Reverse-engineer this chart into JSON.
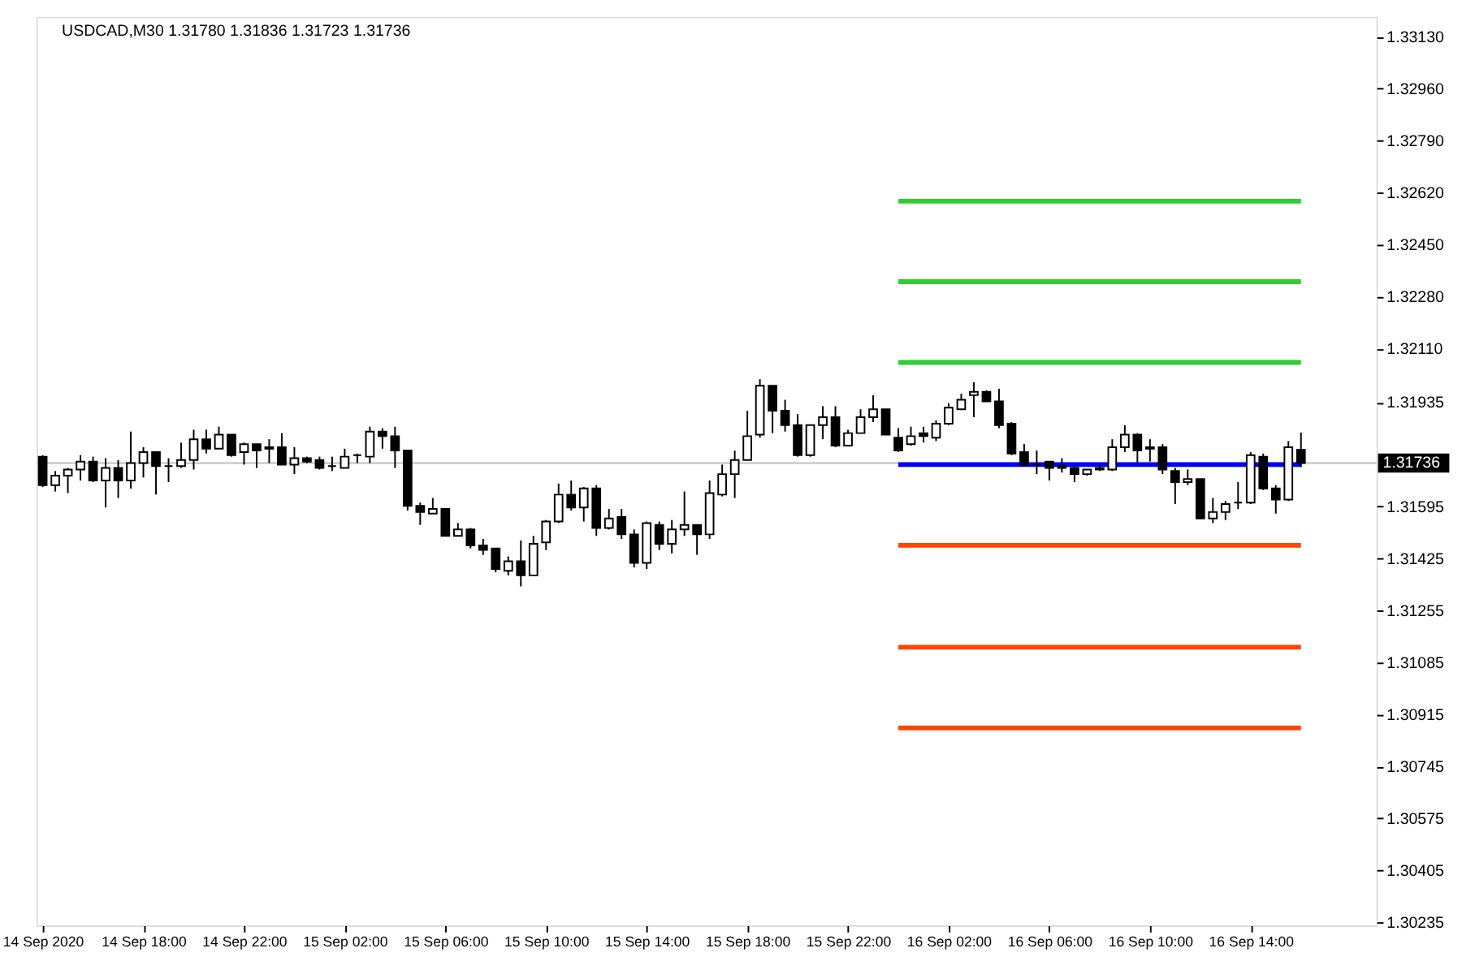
{
  "chart_data": {
    "type": "candlestick",
    "title": "USDCAD,M30 1.31780 1.31836 1.31723 1.31736",
    "x": [
      "2020-09-14T14:00",
      "2020-09-14T14:30",
      "2020-09-14T15:00",
      "2020-09-14T15:30",
      "2020-09-14T16:00",
      "2020-09-14T16:30",
      "2020-09-14T17:00",
      "2020-09-14T17:30",
      "2020-09-14T18:00",
      "2020-09-14T18:30",
      "2020-09-14T19:00",
      "2020-09-14T19:30",
      "2020-09-14T20:00",
      "2020-09-14T20:30",
      "2020-09-14T21:00",
      "2020-09-14T21:30",
      "2020-09-14T22:00",
      "2020-09-14T22:30",
      "2020-09-14T23:00",
      "2020-09-14T23:30",
      "2020-09-15T00:00",
      "2020-09-15T00:30",
      "2020-09-15T01:00",
      "2020-09-15T01:30",
      "2020-09-15T02:00",
      "2020-09-15T02:30",
      "2020-09-15T03:00",
      "2020-09-15T03:30",
      "2020-09-15T04:00",
      "2020-09-15T04:30",
      "2020-09-15T05:00",
      "2020-09-15T05:30",
      "2020-09-15T06:00",
      "2020-09-15T06:30",
      "2020-09-15T07:00",
      "2020-09-15T07:30",
      "2020-09-15T08:00",
      "2020-09-15T08:30",
      "2020-09-15T09:00",
      "2020-09-15T09:30",
      "2020-09-15T10:00",
      "2020-09-15T10:30",
      "2020-09-15T11:00",
      "2020-09-15T11:30",
      "2020-09-15T12:00",
      "2020-09-15T12:30",
      "2020-09-15T13:00",
      "2020-09-15T13:30",
      "2020-09-15T14:00",
      "2020-09-15T14:30",
      "2020-09-15T15:00",
      "2020-09-15T15:30",
      "2020-09-15T16:00",
      "2020-09-15T16:30",
      "2020-09-15T17:00",
      "2020-09-15T17:30",
      "2020-09-15T18:00",
      "2020-09-15T18:30",
      "2020-09-15T19:00",
      "2020-09-15T19:30",
      "2020-09-15T20:00",
      "2020-09-15T20:30",
      "2020-09-15T21:00",
      "2020-09-15T21:30",
      "2020-09-15T22:00",
      "2020-09-15T22:30",
      "2020-09-15T23:00",
      "2020-09-15T23:30",
      "2020-09-16T00:00",
      "2020-09-16T00:30",
      "2020-09-16T01:00",
      "2020-09-16T01:30",
      "2020-09-16T02:00",
      "2020-09-16T02:30",
      "2020-09-16T03:00",
      "2020-09-16T03:30",
      "2020-09-16T04:00",
      "2020-09-16T04:30",
      "2020-09-16T05:00",
      "2020-09-16T05:30",
      "2020-09-16T06:00",
      "2020-09-16T06:30",
      "2020-09-16T07:00",
      "2020-09-16T07:30",
      "2020-09-16T08:00",
      "2020-09-16T08:30",
      "2020-09-16T09:00",
      "2020-09-16T09:30",
      "2020-09-16T10:00",
      "2020-09-16T10:30",
      "2020-09-16T11:00",
      "2020-09-16T11:30",
      "2020-09-16T12:00",
      "2020-09-16T12:30",
      "2020-09-16T13:00",
      "2020-09-16T13:30",
      "2020-09-16T14:00",
      "2020-09-16T14:30",
      "2020-09-16T15:00",
      "2020-09-16T15:30",
      "2020-09-16T16:00"
    ],
    "ohlc": [
      [
        1.31757,
        1.31762,
        1.31658,
        1.31664
      ],
      [
        1.31664,
        1.3171,
        1.31643,
        1.31695
      ],
      [
        1.31695,
        1.3172,
        1.31638,
        1.31715
      ],
      [
        1.31715,
        1.31762,
        1.31679,
        1.31741
      ],
      [
        1.31741,
        1.31757,
        1.31674,
        1.31679
      ],
      [
        1.31679,
        1.31752,
        1.31591,
        1.3172
      ],
      [
        1.3172,
        1.31746,
        1.31622,
        1.31679
      ],
      [
        1.31679,
        1.31839,
        1.31653,
        1.31736
      ],
      [
        1.31736,
        1.31788,
        1.31689,
        1.31772
      ],
      [
        1.31772,
        1.31772,
        1.31633,
        1.31726
      ],
      [
        1.31726,
        1.31752,
        1.31674,
        1.31726
      ],
      [
        1.31726,
        1.31803,
        1.3172,
        1.31746
      ],
      [
        1.31746,
        1.31845,
        1.31715,
        1.31814
      ],
      [
        1.31814,
        1.31845,
        1.31767,
        1.31783
      ],
      [
        1.31783,
        1.31855,
        1.31783,
        1.31829
      ],
      [
        1.31829,
        1.31829,
        1.31757,
        1.31762
      ],
      [
        1.31772,
        1.31803,
        1.31731,
        1.31798
      ],
      [
        1.31798,
        1.31798,
        1.3172,
        1.31777
      ],
      [
        1.31788,
        1.31814,
        1.31736,
        1.31783
      ],
      [
        1.31788,
        1.31834,
        1.31731,
        1.31731
      ],
      [
        1.31731,
        1.31788,
        1.317,
        1.31752
      ],
      [
        1.31752,
        1.31757,
        1.31736,
        1.31741
      ],
      [
        1.31746,
        1.31757,
        1.31715,
        1.3172
      ],
      [
        1.31726,
        1.31757,
        1.3171,
        1.31726
      ],
      [
        1.3172,
        1.31783,
        1.3172,
        1.31757
      ],
      [
        1.31762,
        1.31767,
        1.31736,
        1.31762
      ],
      [
        1.31757,
        1.31855,
        1.31736,
        1.31839
      ],
      [
        1.31839,
        1.3185,
        1.31783,
        1.31824
      ],
      [
        1.31824,
        1.31855,
        1.3172,
        1.31777
      ],
      [
        1.31777,
        1.31777,
        1.31581,
        1.31596
      ],
      [
        1.31596,
        1.31607,
        1.31534,
        1.31576
      ],
      [
        1.31571,
        1.31622,
        1.31571,
        1.31586
      ],
      [
        1.31586,
        1.31586,
        1.31498,
        1.31498
      ],
      [
        1.31498,
        1.3154,
        1.31498,
        1.31519
      ],
      [
        1.31519,
        1.31524,
        1.31457,
        1.31467
      ],
      [
        1.31467,
        1.31488,
        1.31436,
        1.31452
      ],
      [
        1.31457,
        1.31457,
        1.31379,
        1.3139
      ],
      [
        1.31384,
        1.31431,
        1.31369,
        1.31415
      ],
      [
        1.31415,
        1.31483,
        1.31333,
        1.31369
      ],
      [
        1.31369,
        1.31498,
        1.31369,
        1.31472
      ],
      [
        1.31477,
        1.3155,
        1.31452,
        1.31545
      ],
      [
        1.31545,
        1.31669,
        1.3154,
        1.31633
      ],
      [
        1.31633,
        1.31679,
        1.31581,
        1.31591
      ],
      [
        1.31591,
        1.31658,
        1.31545,
        1.31653
      ],
      [
        1.31653,
        1.31664,
        1.31498,
        1.31524
      ],
      [
        1.31524,
        1.31586,
        1.31519,
        1.31555
      ],
      [
        1.3156,
        1.31586,
        1.31488,
        1.31503
      ],
      [
        1.31503,
        1.31519,
        1.31395,
        1.3141
      ],
      [
        1.3141,
        1.31545,
        1.3139,
        1.3154
      ],
      [
        1.31534,
        1.31545,
        1.31452,
        1.31472
      ],
      [
        1.31472,
        1.3155,
        1.31441,
        1.31519
      ],
      [
        1.31519,
        1.31643,
        1.31498,
        1.31534
      ],
      [
        1.31534,
        1.31534,
        1.31436,
        1.31503
      ],
      [
        1.31503,
        1.31679,
        1.31488,
        1.31638
      ],
      [
        1.31633,
        1.31731,
        1.31627,
        1.317
      ],
      [
        1.317,
        1.31777,
        1.31622,
        1.31746
      ],
      [
        1.31746,
        1.31907,
        1.31746,
        1.31824
      ],
      [
        1.31829,
        1.3201,
        1.31819,
        1.31989
      ],
      [
        1.31989,
        1.31989,
        1.31834,
        1.31907
      ],
      [
        1.31907,
        1.31943,
        1.31839,
        1.3186
      ],
      [
        1.3186,
        1.31896,
        1.31757,
        1.31762
      ],
      [
        1.31762,
        1.3186,
        1.31757,
        1.3186
      ],
      [
        1.3186,
        1.31922,
        1.31814,
        1.31886
      ],
      [
        1.31886,
        1.31922,
        1.31788,
        1.31793
      ],
      [
        1.31793,
        1.31845,
        1.31793,
        1.31834
      ],
      [
        1.31834,
        1.31912,
        1.31834,
        1.31886
      ],
      [
        1.31886,
        1.31958,
        1.3187,
        1.31912
      ],
      [
        1.31912,
        1.31912,
        1.31829,
        1.31829
      ],
      [
        1.31819,
        1.3185,
        1.31772,
        1.31777
      ],
      [
        1.31798,
        1.31855,
        1.31793,
        1.31824
      ],
      [
        1.31834,
        1.31855,
        1.31803,
        1.31824
      ],
      [
        1.31819,
        1.31876,
        1.31808,
        1.31865
      ],
      [
        1.31865,
        1.31932,
        1.3186,
        1.31917
      ],
      [
        1.31912,
        1.31963,
        1.31912,
        1.31943
      ],
      [
        1.31958,
        1.32,
        1.31886,
        1.31969
      ],
      [
        1.31969,
        1.31974,
        1.31938,
        1.31938
      ],
      [
        1.31938,
        1.31979,
        1.3185,
        1.3186
      ],
      [
        1.31865,
        1.3187,
        1.31762,
        1.31767
      ],
      [
        1.31772,
        1.31798,
        1.31726,
        1.31731
      ],
      [
        1.31731,
        1.31777,
        1.317,
        1.31731
      ],
      [
        1.31741,
        1.31741,
        1.31679,
        1.3172
      ],
      [
        1.31726,
        1.31752,
        1.31705,
        1.3172
      ],
      [
        1.3172,
        1.31726,
        1.31674,
        1.317
      ],
      [
        1.317,
        1.31715,
        1.31695,
        1.31715
      ],
      [
        1.3172,
        1.31731,
        1.3171,
        1.31715
      ],
      [
        1.31715,
        1.31814,
        1.3171,
        1.31788
      ],
      [
        1.31788,
        1.3186,
        1.31772,
        1.31829
      ],
      [
        1.31829,
        1.31834,
        1.31736,
        1.31777
      ],
      [
        1.31788,
        1.31814,
        1.31741,
        1.31783
      ],
      [
        1.31788,
        1.31798,
        1.317,
        1.31715
      ],
      [
        1.3171,
        1.3172,
        1.31602,
        1.31674
      ],
      [
        1.31674,
        1.31715,
        1.31664,
        1.31684
      ],
      [
        1.31684,
        1.31684,
        1.31555,
        1.31555
      ],
      [
        1.31555,
        1.31622,
        1.3154,
        1.31576
      ],
      [
        1.31576,
        1.31612,
        1.3155,
        1.31602
      ],
      [
        1.31607,
        1.31674,
        1.31586,
        1.31607
      ],
      [
        1.31607,
        1.31772,
        1.31602,
        1.31762
      ],
      [
        1.31757,
        1.31767,
        1.31648,
        1.31653
      ],
      [
        1.31653,
        1.31664,
        1.31571,
        1.31617
      ],
      [
        1.31617,
        1.31808,
        1.31612,
        1.31788
      ],
      [
        1.3178,
        1.31836,
        1.31723,
        1.31736
      ]
    ],
    "series": [
      {
        "type": "line",
        "color": "#32cd32",
        "x": [
          "2020-09-16T00:00",
          "2020-09-16T16:00"
        ],
        "values": [
          1.32592,
          1.32592
        ]
      },
      {
        "type": "line",
        "color": "#32cd32",
        "x": [
          "2020-09-16T00:00",
          "2020-09-16T16:00"
        ],
        "values": [
          1.32329,
          1.32329
        ]
      },
      {
        "type": "line",
        "color": "#32cd32",
        "x": [
          "2020-09-16T00:00",
          "2020-09-16T16:00"
        ],
        "values": [
          1.32065,
          1.32065
        ]
      },
      {
        "type": "line",
        "color": "#0000ff",
        "x": [
          "2020-09-16T00:00",
          "2020-09-16T16:00"
        ],
        "values": [
          1.31731,
          1.31731
        ]
      },
      {
        "type": "line",
        "color": "#ff4500",
        "x": [
          "2020-09-16T00:00",
          "2020-09-16T16:00"
        ],
        "values": [
          1.31467,
          1.31467
        ]
      },
      {
        "type": "line",
        "color": "#ff4500",
        "x": [
          "2020-09-16T00:00",
          "2020-09-16T16:00"
        ],
        "values": [
          1.31134,
          1.31134
        ]
      },
      {
        "type": "line",
        "color": "#ff4500",
        "x": [
          "2020-09-16T00:00",
          "2020-09-16T16:00"
        ],
        "values": [
          1.3087,
          1.3087
        ]
      }
    ],
    "ref_lines": [
      {
        "axis": "y",
        "value": 1.31736,
        "label": "1.31736",
        "color": "#c0c0c0"
      }
    ],
    "xlim": [
      "2020-09-14T13:45",
      "2020-09-16T19:00"
    ],
    "xticks": [
      {
        "value": "2020-09-14T14:00",
        "label": "14 Sep 2020"
      },
      {
        "value": "2020-09-14T18:00",
        "label": "14 Sep 18:00"
      },
      {
        "value": "2020-09-14T22:00",
        "label": "14 Sep 22:00"
      },
      {
        "value": "2020-09-15T02:00",
        "label": "15 Sep 02:00"
      },
      {
        "value": "2020-09-15T06:00",
        "label": "15 Sep 06:00"
      },
      {
        "value": "2020-09-15T10:00",
        "label": "15 Sep 10:00"
      },
      {
        "value": "2020-09-15T14:00",
        "label": "15 Sep 14:00"
      },
      {
        "value": "2020-09-15T18:00",
        "label": "15 Sep 18:00"
      },
      {
        "value": "2020-09-15T22:00",
        "label": "15 Sep 22:00"
      },
      {
        "value": "2020-09-16T02:00",
        "label": "16 Sep 02:00"
      },
      {
        "value": "2020-09-16T06:00",
        "label": "16 Sep 06:00"
      },
      {
        "value": "2020-09-16T10:00",
        "label": "16 Sep 10:00"
      },
      {
        "value": "2020-09-16T14:00",
        "label": "16 Sep 14:00"
      }
    ],
    "ylim": [
      1.30225,
      1.33195
    ],
    "yticks": [
      {
        "value": 1.30235,
        "label": "1.30235"
      },
      {
        "value": 1.30405,
        "label": "1.30405"
      },
      {
        "value": 1.30575,
        "label": "1.30575"
      },
      {
        "value": 1.30745,
        "label": "1.30745"
      },
      {
        "value": 1.30915,
        "label": "1.30915"
      },
      {
        "value": 1.31085,
        "label": "1.31085"
      },
      {
        "value": 1.31255,
        "label": "1.31255"
      },
      {
        "value": 1.31425,
        "label": "1.31425"
      },
      {
        "value": 1.31595,
        "label": "1.31595"
      },
      {
        "value": 1.31935,
        "label": "1.31935"
      },
      {
        "value": 1.3211,
        "label": "1.32110"
      },
      {
        "value": 1.3228,
        "label": "1.32280"
      },
      {
        "value": 1.3245,
        "label": "1.32450"
      },
      {
        "value": 1.3262,
        "label": "1.32620"
      },
      {
        "value": 1.3279,
        "label": "1.32790"
      },
      {
        "value": 1.3296,
        "label": "1.32960"
      },
      {
        "value": 1.3313,
        "label": "1.33130"
      }
    ],
    "tick_labels": "xy"
  }
}
